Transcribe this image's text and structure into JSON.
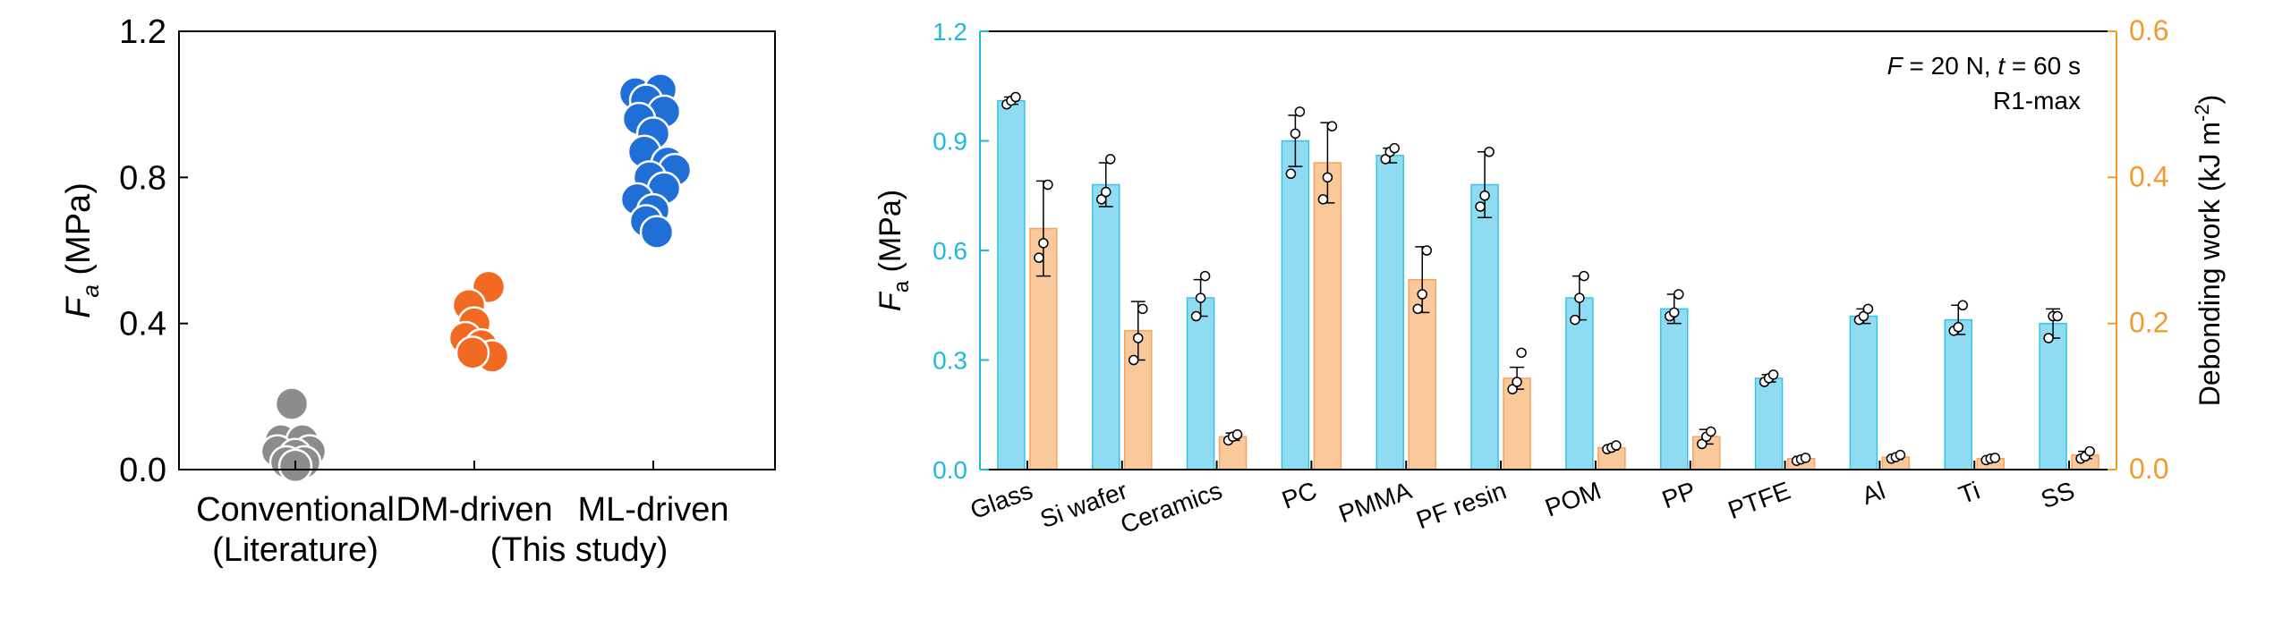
{
  "chart_data": [
    {
      "type": "scatter",
      "ylabel": "F",
      "ylabel_sub": "a",
      "ylabel_unit": " (MPa)",
      "ylim": [
        0,
        1.2
      ],
      "yticks": [
        "0.0",
        "0.4",
        "0.8",
        "1.2"
      ],
      "categories": [
        {
          "line1": "Conventional",
          "line2": "(Literature)"
        },
        {
          "line1": "DM-driven",
          "line2": ""
        },
        {
          "line1": "ML-driven",
          "line2": ""
        }
      ],
      "group_label": "(This study)",
      "series": [
        {
          "color": "#8c8c8c",
          "points": [
            [
              -0.02,
              0.18
            ],
            [
              -0.08,
              0.08
            ],
            [
              0.04,
              0.08
            ],
            [
              -0.1,
              0.05
            ],
            [
              0.08,
              0.05
            ],
            [
              0.0,
              0.04
            ],
            [
              -0.05,
              0.02
            ],
            [
              0.05,
              0.02
            ],
            [
              0.0,
              0.01
            ]
          ]
        },
        {
          "color": "#f26a21",
          "points": [
            [
              0.08,
              0.5
            ],
            [
              -0.03,
              0.45
            ],
            [
              0.0,
              0.4
            ],
            [
              -0.05,
              0.36
            ],
            [
              0.04,
              0.34
            ],
            [
              0.1,
              0.31
            ],
            [
              -0.01,
              0.32
            ]
          ]
        },
        {
          "color": "#1f6fd6",
          "points": [
            [
              -0.1,
              1.03
            ],
            [
              0.04,
              1.04
            ],
            [
              -0.04,
              1.01
            ],
            [
              0.06,
              0.98
            ],
            [
              -0.08,
              0.96
            ],
            [
              0.0,
              0.92
            ],
            [
              -0.05,
              0.87
            ],
            [
              0.08,
              0.84
            ],
            [
              0.12,
              0.82
            ],
            [
              -0.02,
              0.8
            ],
            [
              0.06,
              0.77
            ],
            [
              -0.09,
              0.74
            ],
            [
              0.0,
              0.71
            ],
            [
              -0.04,
              0.68
            ],
            [
              0.02,
              0.65
            ]
          ]
        }
      ]
    },
    {
      "type": "bar",
      "annotation_line1": {
        "F": "F",
        "Fval": " = 20 N, ",
        "t": "t",
        "tval": " = 60 s"
      },
      "annotation_line2": "R1-max",
      "ylabel": "F",
      "ylabel_sub": "a",
      "ylabel_unit": " (MPa)",
      "ylim": [
        0,
        1.2
      ],
      "yticks": [
        "0.0",
        "0.3",
        "0.6",
        "0.9",
        "1.2"
      ],
      "y2label": "Debonding work (kJ m",
      "y2label_sup": "-2",
      "y2label_end": ")",
      "y2lim": [
        0,
        0.6
      ],
      "y2ticks": [
        "0.0",
        "0.2",
        "0.4",
        "0.6"
      ],
      "categories": [
        "Glass",
        "Si wafer",
        "Ceramics",
        "PC",
        "PMMA",
        "PF resin",
        "POM",
        "PP",
        "PTFE",
        "Al",
        "Ti",
        "SS"
      ],
      "series": [
        {
          "axis": "left",
          "color": "#8fdcf2",
          "edge": "#36c3e8",
          "values": [
            1.01,
            0.78,
            0.47,
            0.9,
            0.86,
            0.78,
            0.47,
            0.44,
            0.25,
            0.42,
            0.41,
            0.4
          ],
          "errors": [
            0.01,
            0.06,
            0.05,
            0.07,
            0.02,
            0.09,
            0.06,
            0.04,
            0.01,
            0.02,
            0.04,
            0.04
          ],
          "points": [
            [
              1.0,
              1.01,
              1.02
            ],
            [
              0.74,
              0.76,
              0.85
            ],
            [
              0.42,
              0.47,
              0.53
            ],
            [
              0.81,
              0.92,
              0.98
            ],
            [
              0.85,
              0.87,
              0.88
            ],
            [
              0.72,
              0.75,
              0.87
            ],
            [
              0.41,
              0.47,
              0.53
            ],
            [
              0.42,
              0.43,
              0.48
            ],
            [
              0.24,
              0.25,
              0.26
            ],
            [
              0.41,
              0.42,
              0.44
            ],
            [
              0.38,
              0.39,
              0.45
            ],
            [
              0.36,
              0.42,
              0.42
            ]
          ]
        },
        {
          "axis": "right",
          "color": "#f9c99c",
          "edge": "#f6a460",
          "values": [
            0.33,
            0.19,
            0.045,
            0.42,
            0.26,
            0.125,
            0.03,
            0.045,
            0.015,
            0.017,
            0.015,
            0.02
          ],
          "errors": [
            0.065,
            0.04,
            0.005,
            0.055,
            0.045,
            0.015,
            0.003,
            0.01,
            0.003,
            0.003,
            0.002,
            0.005
          ],
          "points": [
            [
              0.29,
              0.31,
              0.39
            ],
            [
              0.15,
              0.18,
              0.22
            ],
            [
              0.04,
              0.045,
              0.048
            ],
            [
              0.37,
              0.4,
              0.47
            ],
            [
              0.22,
              0.24,
              0.3
            ],
            [
              0.11,
              0.12,
              0.16
            ],
            [
              0.028,
              0.03,
              0.033
            ],
            [
              0.035,
              0.045,
              0.052
            ],
            [
              0.012,
              0.014,
              0.016
            ],
            [
              0.015,
              0.017,
              0.02
            ],
            [
              0.013,
              0.015,
              0.016
            ],
            [
              0.015,
              0.018,
              0.025
            ]
          ]
        }
      ]
    }
  ]
}
